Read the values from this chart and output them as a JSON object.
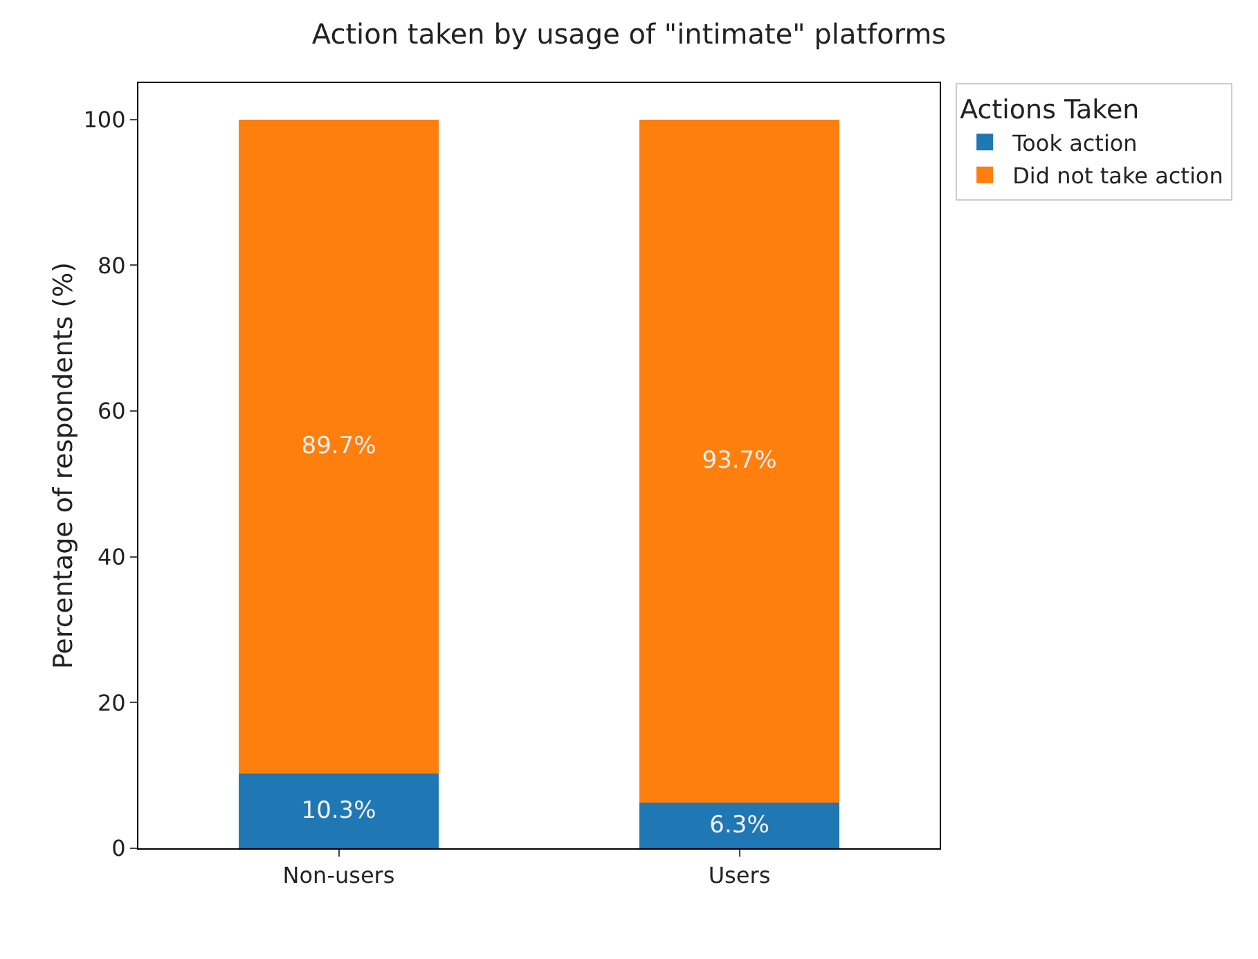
{
  "chart_data": {
    "type": "bar",
    "title": "Action taken by usage of \"intimate\" platforms",
    "ylabel": "Percentage of respondents (%)",
    "legend_title": "Actions Taken",
    "categories": [
      "Non-users",
      "Users"
    ],
    "stacked": true,
    "series": [
      {
        "name": "Took action",
        "color": "#1f77b4",
        "values": [
          10.3,
          6.3
        ],
        "value_labels": [
          "10.3%",
          "6.3%"
        ]
      },
      {
        "name": "Did not take action",
        "color": "#ff7f0e",
        "values": [
          89.7,
          93.7
        ],
        "value_labels": [
          "89.7%",
          "93.7%"
        ]
      }
    ],
    "ylim": [
      0,
      105
    ],
    "yticks": [
      0,
      20,
      40,
      60,
      80,
      100
    ],
    "grid": false,
    "legend": "top right"
  }
}
